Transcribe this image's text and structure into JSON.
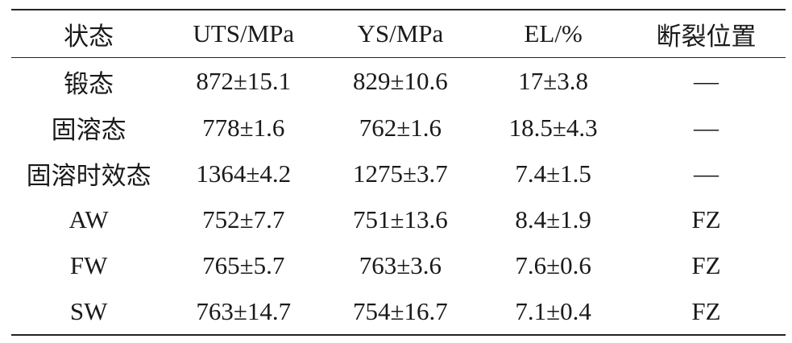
{
  "table": {
    "headers": [
      "状态",
      "UTS/MPa",
      "YS/MPa",
      "EL/%",
      "断裂位置"
    ],
    "rows": [
      [
        "锻态",
        "872±15.1",
        "829±10.6",
        "17±3.8",
        "—"
      ],
      [
        "固溶态",
        "778±1.6",
        "762±1.6",
        "18.5±4.3",
        "—"
      ],
      [
        "固溶时效态",
        "1364±4.2",
        "1275±3.7",
        "7.4±1.5",
        "—"
      ],
      [
        "AW",
        "752±7.7",
        "751±13.6",
        "8.4±1.9",
        "FZ"
      ],
      [
        "FW",
        "765±5.7",
        "763±3.6",
        "7.6±0.6",
        "FZ"
      ],
      [
        "SW",
        "763±14.7",
        "754±16.7",
        "7.1±0.4",
        "FZ"
      ]
    ]
  }
}
